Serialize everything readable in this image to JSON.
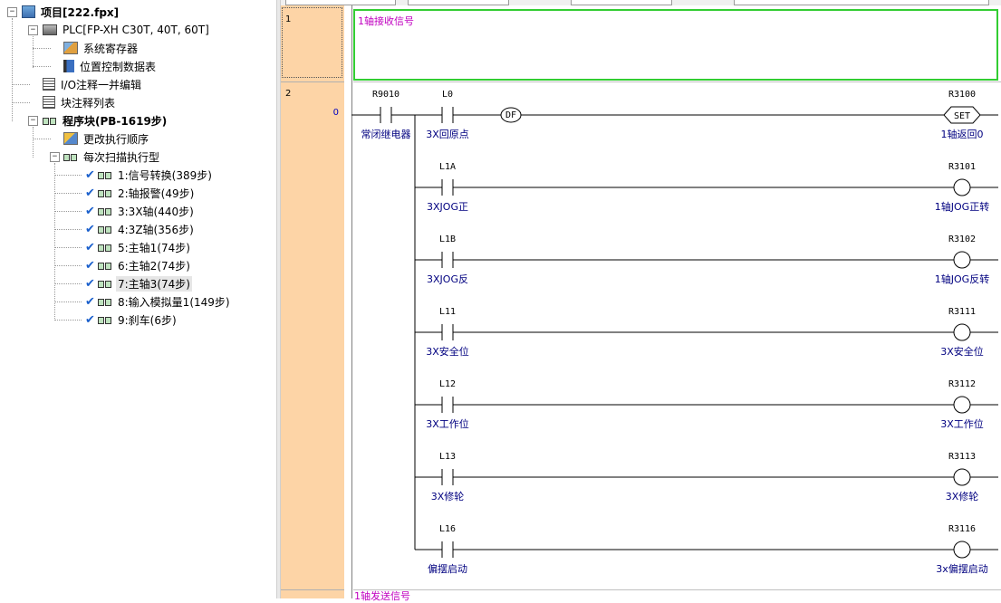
{
  "tree": {
    "project": "项目[222.fpx]",
    "plc": "PLC[FP-XH C30T, 40T, 60T]",
    "system_register": "系统寄存器",
    "position_table": "位置控制数据表",
    "io_comment": "I/O注释一并编辑",
    "block_comment": "块注释列表",
    "program_block": "程序块(PB-1619步)",
    "change_order": "更改执行顺序",
    "scan_type": "每次扫描执行型",
    "programs": [
      "1:信号转换(389步)",
      "2:轴报警(49步)",
      "3:3X轴(440步)",
      "4:3Z轴(356步)",
      "5:主轴1(74步)",
      "6:主轴2(74步)",
      "7:主轴3(74步)",
      "8:输入模拟量1(149步)",
      "9:刹车(6步)"
    ]
  },
  "editor": {
    "rows": [
      {
        "num": "1",
        "step": ""
      },
      {
        "num": "2",
        "step": "0"
      }
    ],
    "comment1": "1轴接收信号",
    "comment_bottom": "1轴发送信号",
    "main_contact": {
      "device": "R9010",
      "comment": "常闭继电器"
    },
    "df_label": "DF",
    "set_label": "SET",
    "rungs": [
      {
        "contact": "L0",
        "contact_comment": "3X回原点",
        "coil": "R3100",
        "coil_comment": "1轴返回0",
        "type": "set"
      },
      {
        "contact": "L1A",
        "contact_comment": "3XJOG正",
        "coil": "R3101",
        "coil_comment": "1轴JOG正转",
        "type": "coil"
      },
      {
        "contact": "L1B",
        "contact_comment": "3XJOG反",
        "coil": "R3102",
        "coil_comment": "1轴JOG反转",
        "type": "coil"
      },
      {
        "contact": "L11",
        "contact_comment": "3X安全位",
        "coil": "R3111",
        "coil_comment": "3X安全位",
        "type": "coil"
      },
      {
        "contact": "L12",
        "contact_comment": "3X工作位",
        "coil": "R3112",
        "coil_comment": "3X工作位",
        "type": "coil"
      },
      {
        "contact": "L13",
        "contact_comment": "3X修轮",
        "coil": "R3113",
        "coil_comment": "3X修轮",
        "type": "coil"
      },
      {
        "contact": "L16",
        "contact_comment": "偏摆启动",
        "coil": "R3116",
        "coil_comment": "3x偏摆启动",
        "type": "coil"
      }
    ]
  },
  "colors": {
    "gutter": "#fdd4a6",
    "comment_text": "#c000c0",
    "device_comment": "#000080",
    "selection_border": "#32cd32",
    "tree_check": "#1a5fcc"
  }
}
